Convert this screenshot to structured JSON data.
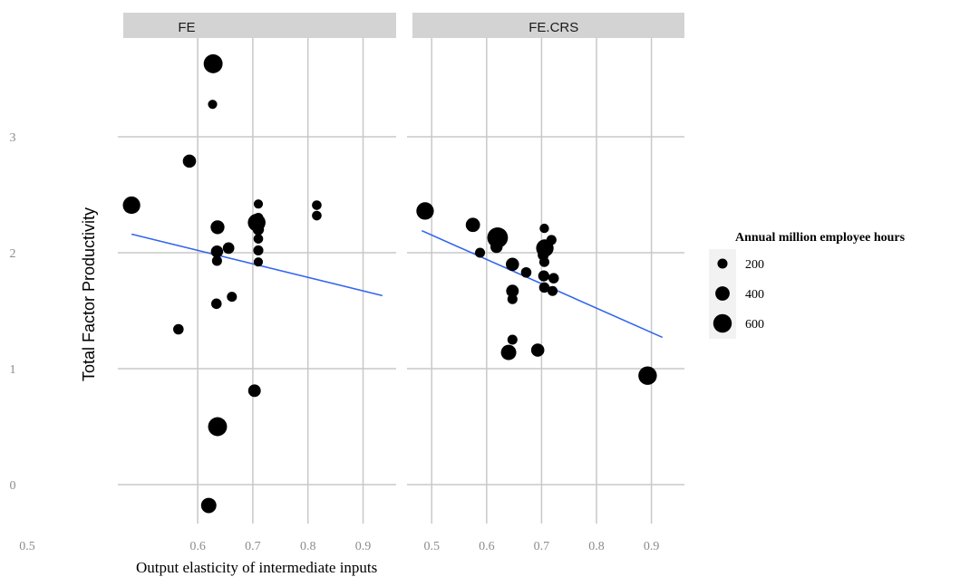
{
  "chart_data": {
    "type": "scatter",
    "xlabel": "Output elasticity of intermediate inputs",
    "ylabel": "Total Factor Productivity",
    "y_ticks": [
      0,
      1,
      2,
      3
    ],
    "y_range": [
      -0.25,
      3.7
    ],
    "legend": {
      "title": "Annual million employee hours",
      "position": "right",
      "entries": [
        {
          "label": "200",
          "value": 200
        },
        {
          "label": "400",
          "value": 400
        },
        {
          "label": "600",
          "value": 600
        }
      ]
    },
    "panels": [
      {
        "name": "FE",
        "x_ticks": [
          0.6,
          0.7,
          0.8,
          0.9
        ],
        "x_range": [
          0.465,
          0.96
        ],
        "extra_tick_label": "0.5",
        "points": [
          {
            "x": 0.628,
            "y": 3.63,
            "size": 620
          },
          {
            "x": 0.627,
            "y": 3.28,
            "size": 160
          },
          {
            "x": 0.585,
            "y": 2.79,
            "size": 350
          },
          {
            "x": 0.48,
            "y": 2.41,
            "size": 550
          },
          {
            "x": 0.636,
            "y": 2.22,
            "size": 380
          },
          {
            "x": 0.635,
            "y": 2.01,
            "size": 300
          },
          {
            "x": 0.656,
            "y": 2.04,
            "size": 270
          },
          {
            "x": 0.635,
            "y": 1.93,
            "size": 200
          },
          {
            "x": 0.634,
            "y": 1.56,
            "size": 220
          },
          {
            "x": 0.662,
            "y": 1.62,
            "size": 200
          },
          {
            "x": 0.565,
            "y": 1.34,
            "size": 220
          },
          {
            "x": 0.71,
            "y": 2.42,
            "size": 160
          },
          {
            "x": 0.71,
            "y": 2.3,
            "size": 200
          },
          {
            "x": 0.707,
            "y": 2.26,
            "size": 560
          },
          {
            "x": 0.71,
            "y": 2.2,
            "size": 260
          },
          {
            "x": 0.71,
            "y": 2.12,
            "size": 180
          },
          {
            "x": 0.71,
            "y": 2.02,
            "size": 200
          },
          {
            "x": 0.71,
            "y": 1.92,
            "size": 160
          },
          {
            "x": 0.816,
            "y": 2.41,
            "size": 180
          },
          {
            "x": 0.816,
            "y": 2.32,
            "size": 180
          },
          {
            "x": 0.703,
            "y": 0.81,
            "size": 320
          },
          {
            "x": 0.636,
            "y": 0.5,
            "size": 620
          },
          {
            "x": 0.62,
            "y": -0.18,
            "size": 450
          }
        ],
        "fit_line": [
          {
            "x": 0.48,
            "y": 2.16
          },
          {
            "x": 0.935,
            "y": 1.63
          }
        ]
      },
      {
        "name": "FE.CRS",
        "x_ticks": [
          0.5,
          0.6,
          0.7,
          0.8,
          0.9
        ],
        "x_range": [
          0.465,
          0.96
        ],
        "points": [
          {
            "x": 0.488,
            "y": 2.36,
            "size": 550
          },
          {
            "x": 0.575,
            "y": 2.24,
            "size": 400
          },
          {
            "x": 0.588,
            "y": 2.0,
            "size": 200
          },
          {
            "x": 0.62,
            "y": 2.13,
            "size": 700
          },
          {
            "x": 0.618,
            "y": 2.05,
            "size": 300
          },
          {
            "x": 0.647,
            "y": 1.9,
            "size": 350
          },
          {
            "x": 0.672,
            "y": 1.83,
            "size": 220
          },
          {
            "x": 0.647,
            "y": 1.67,
            "size": 320
          },
          {
            "x": 0.647,
            "y": 1.6,
            "size": 200
          },
          {
            "x": 0.705,
            "y": 2.21,
            "size": 170
          },
          {
            "x": 0.718,
            "y": 2.11,
            "size": 200
          },
          {
            "x": 0.706,
            "y": 2.04,
            "size": 550
          },
          {
            "x": 0.703,
            "y": 1.98,
            "size": 250
          },
          {
            "x": 0.705,
            "y": 1.92,
            "size": 200
          },
          {
            "x": 0.704,
            "y": 1.8,
            "size": 250
          },
          {
            "x": 0.722,
            "y": 1.78,
            "size": 220
          },
          {
            "x": 0.705,
            "y": 1.7,
            "size": 220
          },
          {
            "x": 0.72,
            "y": 1.67,
            "size": 200
          },
          {
            "x": 0.647,
            "y": 1.25,
            "size": 200
          },
          {
            "x": 0.64,
            "y": 1.14,
            "size": 450
          },
          {
            "x": 0.693,
            "y": 1.16,
            "size": 350
          },
          {
            "x": 0.893,
            "y": 0.94,
            "size": 600
          }
        ],
        "fit_line": [
          {
            "x": 0.482,
            "y": 2.19
          },
          {
            "x": 0.92,
            "y": 1.27
          }
        ]
      }
    ],
    "colors": {
      "points": "#000000",
      "fit_line": "#3366ee",
      "strip": "#d3d3d3",
      "grid": "#c8c8c8",
      "tick_text": "#8c8c8c"
    }
  }
}
